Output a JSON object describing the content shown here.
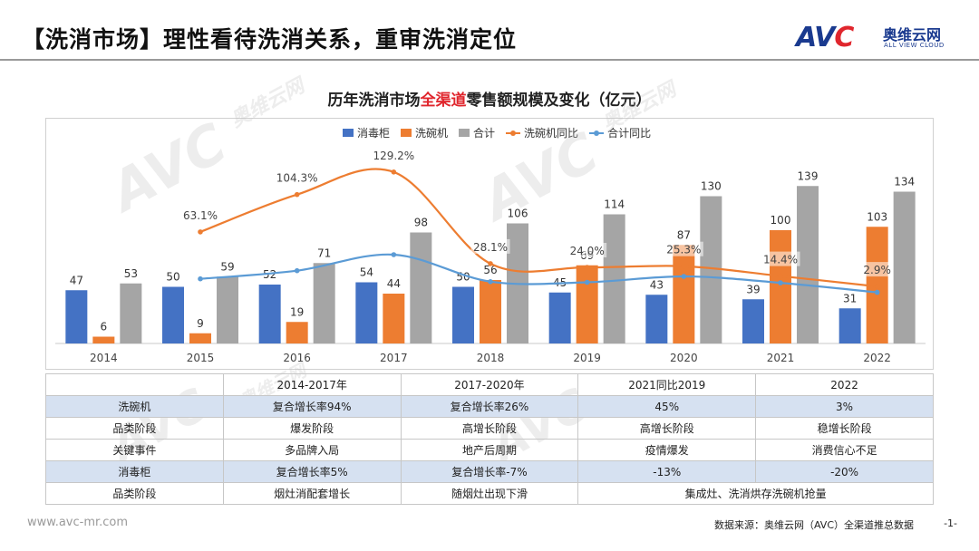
{
  "header": {
    "title": "【洗消市场】理性看待洗消关系，重审洗消定位",
    "logo_mark_a": "AV",
    "logo_mark_c": "C",
    "logo_cn": "奥维云网",
    "logo_en": "ALL VIEW CLOUD"
  },
  "chart_title": {
    "prefix": "历年洗消市场",
    "highlight": "全渠道",
    "suffix": "零售额规模及变化（亿元）"
  },
  "watermark": {
    "mark": "AVC",
    "cn": "奥维云网",
    "en": "ALL VIEW CLOUD"
  },
  "colors": {
    "disinfect": "#4472c4",
    "dishwasher": "#ed7d31",
    "total": "#a5a5a5",
    "dishwasher_yoy": "#ed7d31",
    "total_yoy": "#5b9bd5",
    "table_shade": "#d6e1f1",
    "highlight": "#e0262d"
  },
  "chart_data": {
    "type": "bar",
    "title": "历年洗消市场全渠道零售额规模及变化（亿元）",
    "categories": [
      "2014",
      "2015",
      "2016",
      "2017",
      "2018",
      "2019",
      "2020",
      "2021",
      "2022"
    ],
    "series": [
      {
        "name": "消毒柜",
        "type": "bar",
        "values": [
          47,
          50,
          52,
          54,
          50,
          45,
          43,
          39,
          31
        ]
      },
      {
        "name": "洗碗机",
        "type": "bar",
        "values": [
          6,
          9,
          19,
          44,
          56,
          69,
          87,
          100,
          103
        ]
      },
      {
        "name": "合计",
        "type": "bar",
        "values": [
          53,
          59,
          71,
          98,
          106,
          114,
          130,
          139,
          134
        ]
      },
      {
        "name": "洗碗机同比",
        "type": "line",
        "smooth": true,
        "values": [
          null,
          63.1,
          104.3,
          129.2,
          28.1,
          24.0,
          25.3,
          14.4,
          2.9
        ],
        "labels": [
          null,
          "63.1%",
          "104.3%",
          "129.2%",
          "28.1%",
          "24.0%",
          "25.3%",
          "14.4%",
          "2.9%"
        ]
      },
      {
        "name": "合计同比",
        "type": "line",
        "smooth": true,
        "values": [
          null,
          11.3,
          20.3,
          38.0,
          8.2,
          7.5,
          14.0,
          6.9,
          -3.6
        ]
      }
    ],
    "ylim": [
      0,
      160
    ],
    "y2lim": [
      -60,
      140
    ],
    "xlabel": "",
    "ylabel": "亿元",
    "legend": "top-center",
    "grid": false
  },
  "table": {
    "header": [
      "",
      "2014-2017年",
      "2017-2020年",
      "2021同比2019",
      "2022"
    ],
    "rows": [
      {
        "shade": true,
        "cells": [
          "洗碗机",
          "复合增长率94%",
          "复合增长率26%",
          "45%",
          "3%"
        ]
      },
      {
        "shade": false,
        "cells": [
          "品类阶段",
          "爆发阶段",
          "高增长阶段",
          "高增长阶段",
          "稳增长阶段"
        ]
      },
      {
        "shade": false,
        "cells": [
          "关键事件",
          "多品牌入局",
          "地产后周期",
          "疫情爆发",
          "消费信心不足"
        ]
      },
      {
        "shade": true,
        "cells": [
          "消毒柜",
          "复合增长率5%",
          "复合增长率-7%",
          "-13%",
          "-20%"
        ]
      },
      {
        "shade": false,
        "cells": [
          "品类阶段",
          "烟灶消配套增长",
          "随烟灶出现下滑",
          "集成灶、洗消烘存洗碗机抢量"
        ]
      }
    ]
  },
  "footer": {
    "url": "www.avc-mr.com",
    "source": "数据来源：奥维云网（AVC）全渠道推总数据",
    "page": "-1-"
  }
}
